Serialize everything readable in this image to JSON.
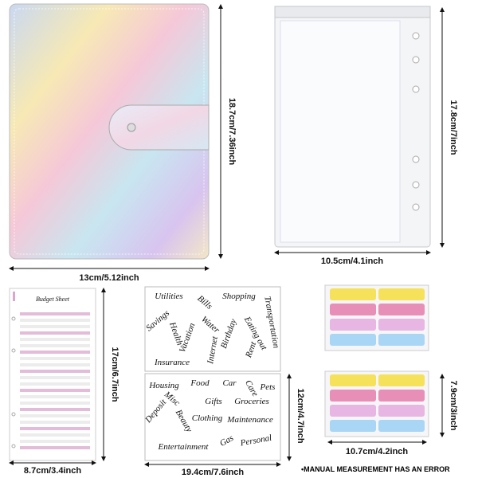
{
  "binder": {
    "width_label": "13cm/5.12inch",
    "height_label": "18.7cm/7.36inch"
  },
  "pouch": {
    "width_label": "10.5cm/4.1inch",
    "height_label": "17.8cm/7inch"
  },
  "budget_sheet": {
    "title": "Budget Sheet",
    "height_label": "17cm/6.7inch",
    "width_label": "8.7cm/3.4inch"
  },
  "stickers": {
    "sheet_1": [
      "Utilities",
      "Shopping",
      "Bills",
      "Transportation",
      "Savings",
      "Health",
      "Water",
      "Birthday",
      "Eating out",
      "Vacation",
      "Internet",
      "Rent",
      "Insurance"
    ],
    "sheet_2": [
      "Housing",
      "Food",
      "Car",
      "Care",
      "Pets",
      "Misc",
      "Gifts",
      "Deposit",
      "Groceries",
      "Beauty",
      "Clothing",
      "Maintenance",
      "Entertainment",
      "Gas",
      "Personal"
    ],
    "height_label": "12cm/4.7inch",
    "width_label": "19.4cm/7.6inch"
  },
  "tabs": {
    "height_label": "7.9cm/3inch",
    "width_label": "10.7cm/4.2inch"
  },
  "note": "•MANUAL MEASUREMENT HAS AN ERROR"
}
